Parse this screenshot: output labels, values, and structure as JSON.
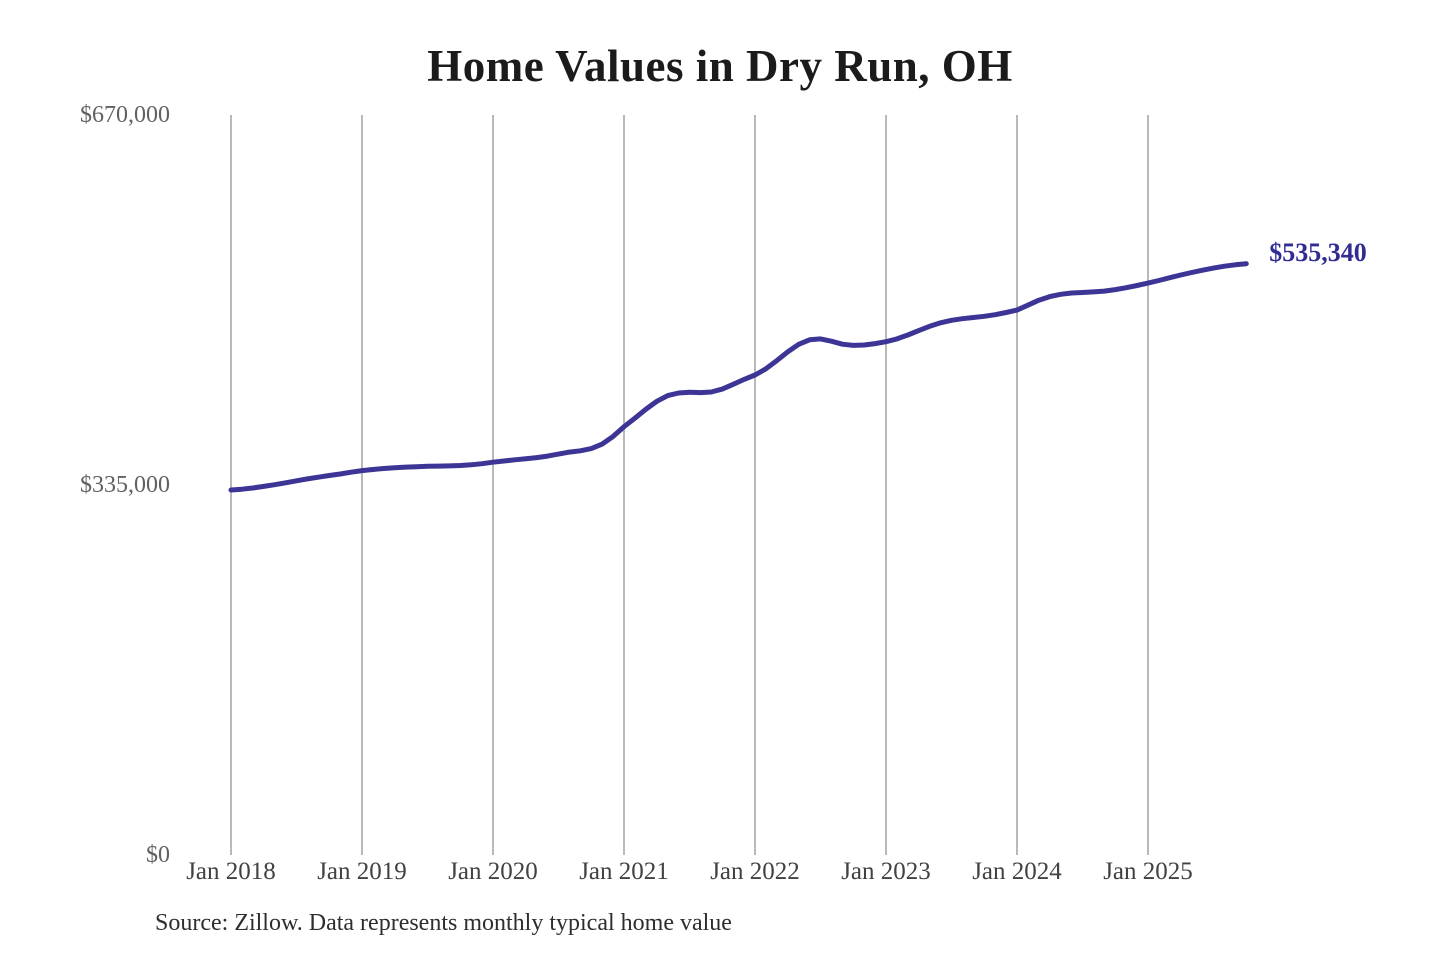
{
  "page": {
    "background": "#ffffff"
  },
  "chart_data": {
    "type": "line",
    "title": "Home Values in Dry Run, OH",
    "source_note": "Source: Zillow. Data represents monthly typical home value",
    "series_name": "Monthly typical home value",
    "end_label": "$535,340",
    "latest_value": 535340,
    "ylim": [
      0,
      670000
    ],
    "grid": "vertical-only",
    "legend": "none",
    "y_ticks": [
      {
        "label": "$670,000",
        "value": 670000
      },
      {
        "label": "$335,000",
        "value": 335000
      },
      {
        "label": "$0",
        "value": 0
      }
    ],
    "x_tick_labels": [
      "Jan 2018",
      "Jan 2019",
      "Jan 2020",
      "Jan 2021",
      "Jan 2022",
      "Jan 2023",
      "Jan 2024",
      "Jan 2025"
    ],
    "colors": {
      "line": "#3c3596",
      "end_label": "#302c94",
      "gridline": "#b9b9b9",
      "x_tick": "#414141",
      "y_tick": "#616161",
      "title": "#1b1b1b",
      "source": "#2e2e2e"
    },
    "x": [
      "Jan 2018",
      "Feb 2018",
      "Mar 2018",
      "Apr 2018",
      "May 2018",
      "Jun 2018",
      "Jul 2018",
      "Aug 2018",
      "Sep 2018",
      "Oct 2018",
      "Nov 2018",
      "Dec 2018",
      "Jan 2019",
      "Feb 2019",
      "Mar 2019",
      "Apr 2019",
      "May 2019",
      "Jun 2019",
      "Jul 2019",
      "Aug 2019",
      "Sep 2019",
      "Oct 2019",
      "Nov 2019",
      "Dec 2019",
      "Jan 2020",
      "Feb 2020",
      "Mar 2020",
      "Apr 2020",
      "May 2020",
      "Jun 2020",
      "Jul 2020",
      "Aug 2020",
      "Sep 2020",
      "Oct 2020",
      "Nov 2020",
      "Dec 2020",
      "Jan 2021",
      "Feb 2021",
      "Mar 2021",
      "Apr 2021",
      "May 2021",
      "Jun 2021",
      "Jul 2021",
      "Aug 2021",
      "Sep 2021",
      "Oct 2021",
      "Nov 2021",
      "Dec 2021",
      "Jan 2022",
      "Feb 2022",
      "Mar 2022",
      "Apr 2022",
      "May 2022",
      "Jun 2022",
      "Jul 2022",
      "Aug 2022",
      "Sep 2022",
      "Oct 2022",
      "Nov 2022",
      "Dec 2022",
      "Jan 2023",
      "Feb 2023",
      "Mar 2023",
      "Apr 2023",
      "May 2023",
      "Jun 2023",
      "Jul 2023",
      "Aug 2023",
      "Sep 2023",
      "Oct 2023",
      "Nov 2023",
      "Dec 2023",
      "Jan 2024",
      "Feb 2024",
      "Mar 2024",
      "Apr 2024",
      "May 2024",
      "Jun 2024",
      "Jul 2024",
      "Aug 2024",
      "Sep 2024",
      "Oct 2024",
      "Nov 2024",
      "Dec 2024",
      "Jan 2025",
      "Feb 2025",
      "Mar 2025",
      "Apr 2025",
      "May 2025",
      "Jun 2025",
      "Jul 2025",
      "Aug 2025",
      "Sep 2025",
      "Oct 2025"
    ],
    "values": [
      330500,
      331200,
      332300,
      333700,
      335300,
      337000,
      338800,
      340500,
      342100,
      343600,
      345000,
      346600,
      348000,
      349000,
      349900,
      350600,
      351200,
      351600,
      351900,
      352100,
      352300,
      352700,
      353300,
      354300,
      355600,
      356700,
      357800,
      358800,
      359800,
      361200,
      363000,
      364800,
      366000,
      368000,
      372000,
      379000,
      387800,
      395500,
      403500,
      410800,
      415900,
      418300,
      419000,
      418700,
      419200,
      421800,
      426200,
      430600,
      434600,
      440200,
      447600,
      455600,
      462400,
      466500,
      467300,
      465200,
      462500,
      461400,
      461800,
      463000,
      464700,
      467300,
      470800,
      474800,
      478700,
      481900,
      484100,
      485600,
      486700,
      487700,
      489200,
      491200,
      493400,
      497800,
      502300,
      505600,
      507700,
      508800,
      509300,
      509800,
      510600,
      511900,
      513600,
      515600,
      517800,
      520200,
      522700,
      525100,
      527400,
      529500,
      531400,
      533100,
      534400,
      535340
    ]
  }
}
